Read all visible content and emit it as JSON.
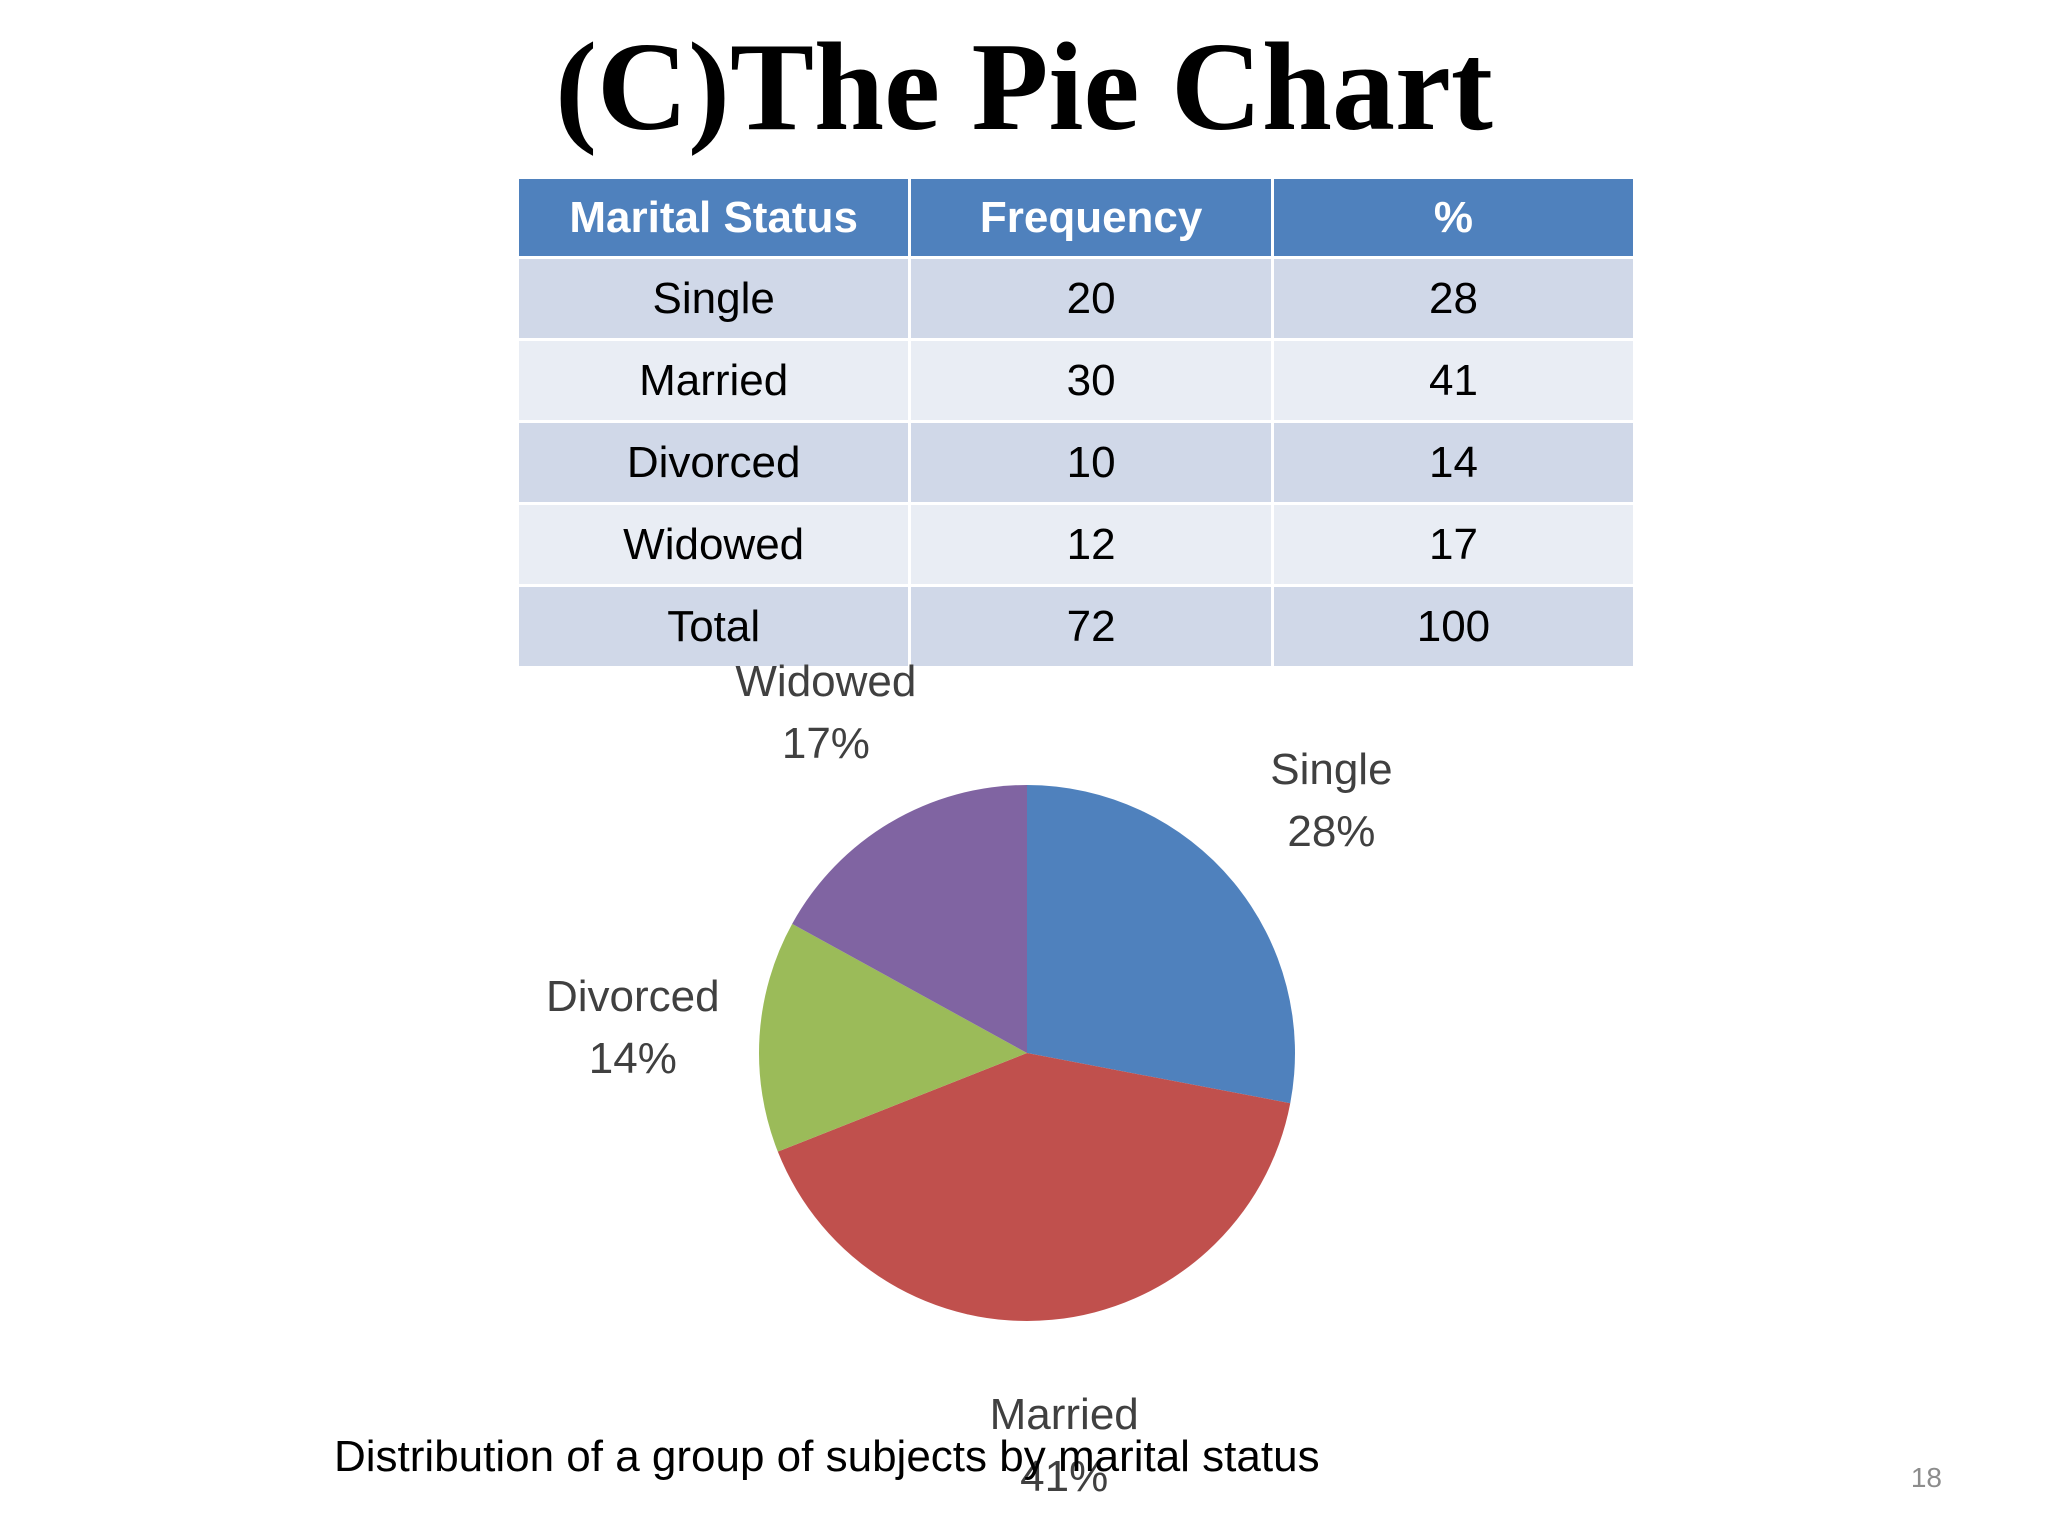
{
  "title": "(C)The Pie Chart",
  "table": {
    "headers": [
      "Marital Status",
      "Frequency",
      "%"
    ],
    "rows": [
      [
        "Single",
        "20",
        "28"
      ],
      [
        "Married",
        "30",
        "41"
      ],
      [
        "Divorced",
        "10",
        "14"
      ],
      [
        "Widowed",
        "12",
        "17"
      ],
      [
        "Total",
        "72",
        "100"
      ]
    ]
  },
  "chart_data": {
    "type": "pie",
    "title": "",
    "slices": [
      {
        "label": "Single",
        "value": 28,
        "display": "28%",
        "color": "#4f81bd"
      },
      {
        "label": "Married",
        "value": 41,
        "display": "41%",
        "color": "#c0504d"
      },
      {
        "label": "Divorced",
        "value": 14,
        "display": "14%",
        "color": "#9bbb59"
      },
      {
        "label": "Widowed",
        "value": 17,
        "display": "17%",
        "color": "#8064a2"
      }
    ],
    "start": "12 o'clock",
    "direction": "clockwise",
    "legend": "none",
    "labels": "outside"
  },
  "caption": "Distribution of a group of subjects by marital status",
  "page_number": "18"
}
